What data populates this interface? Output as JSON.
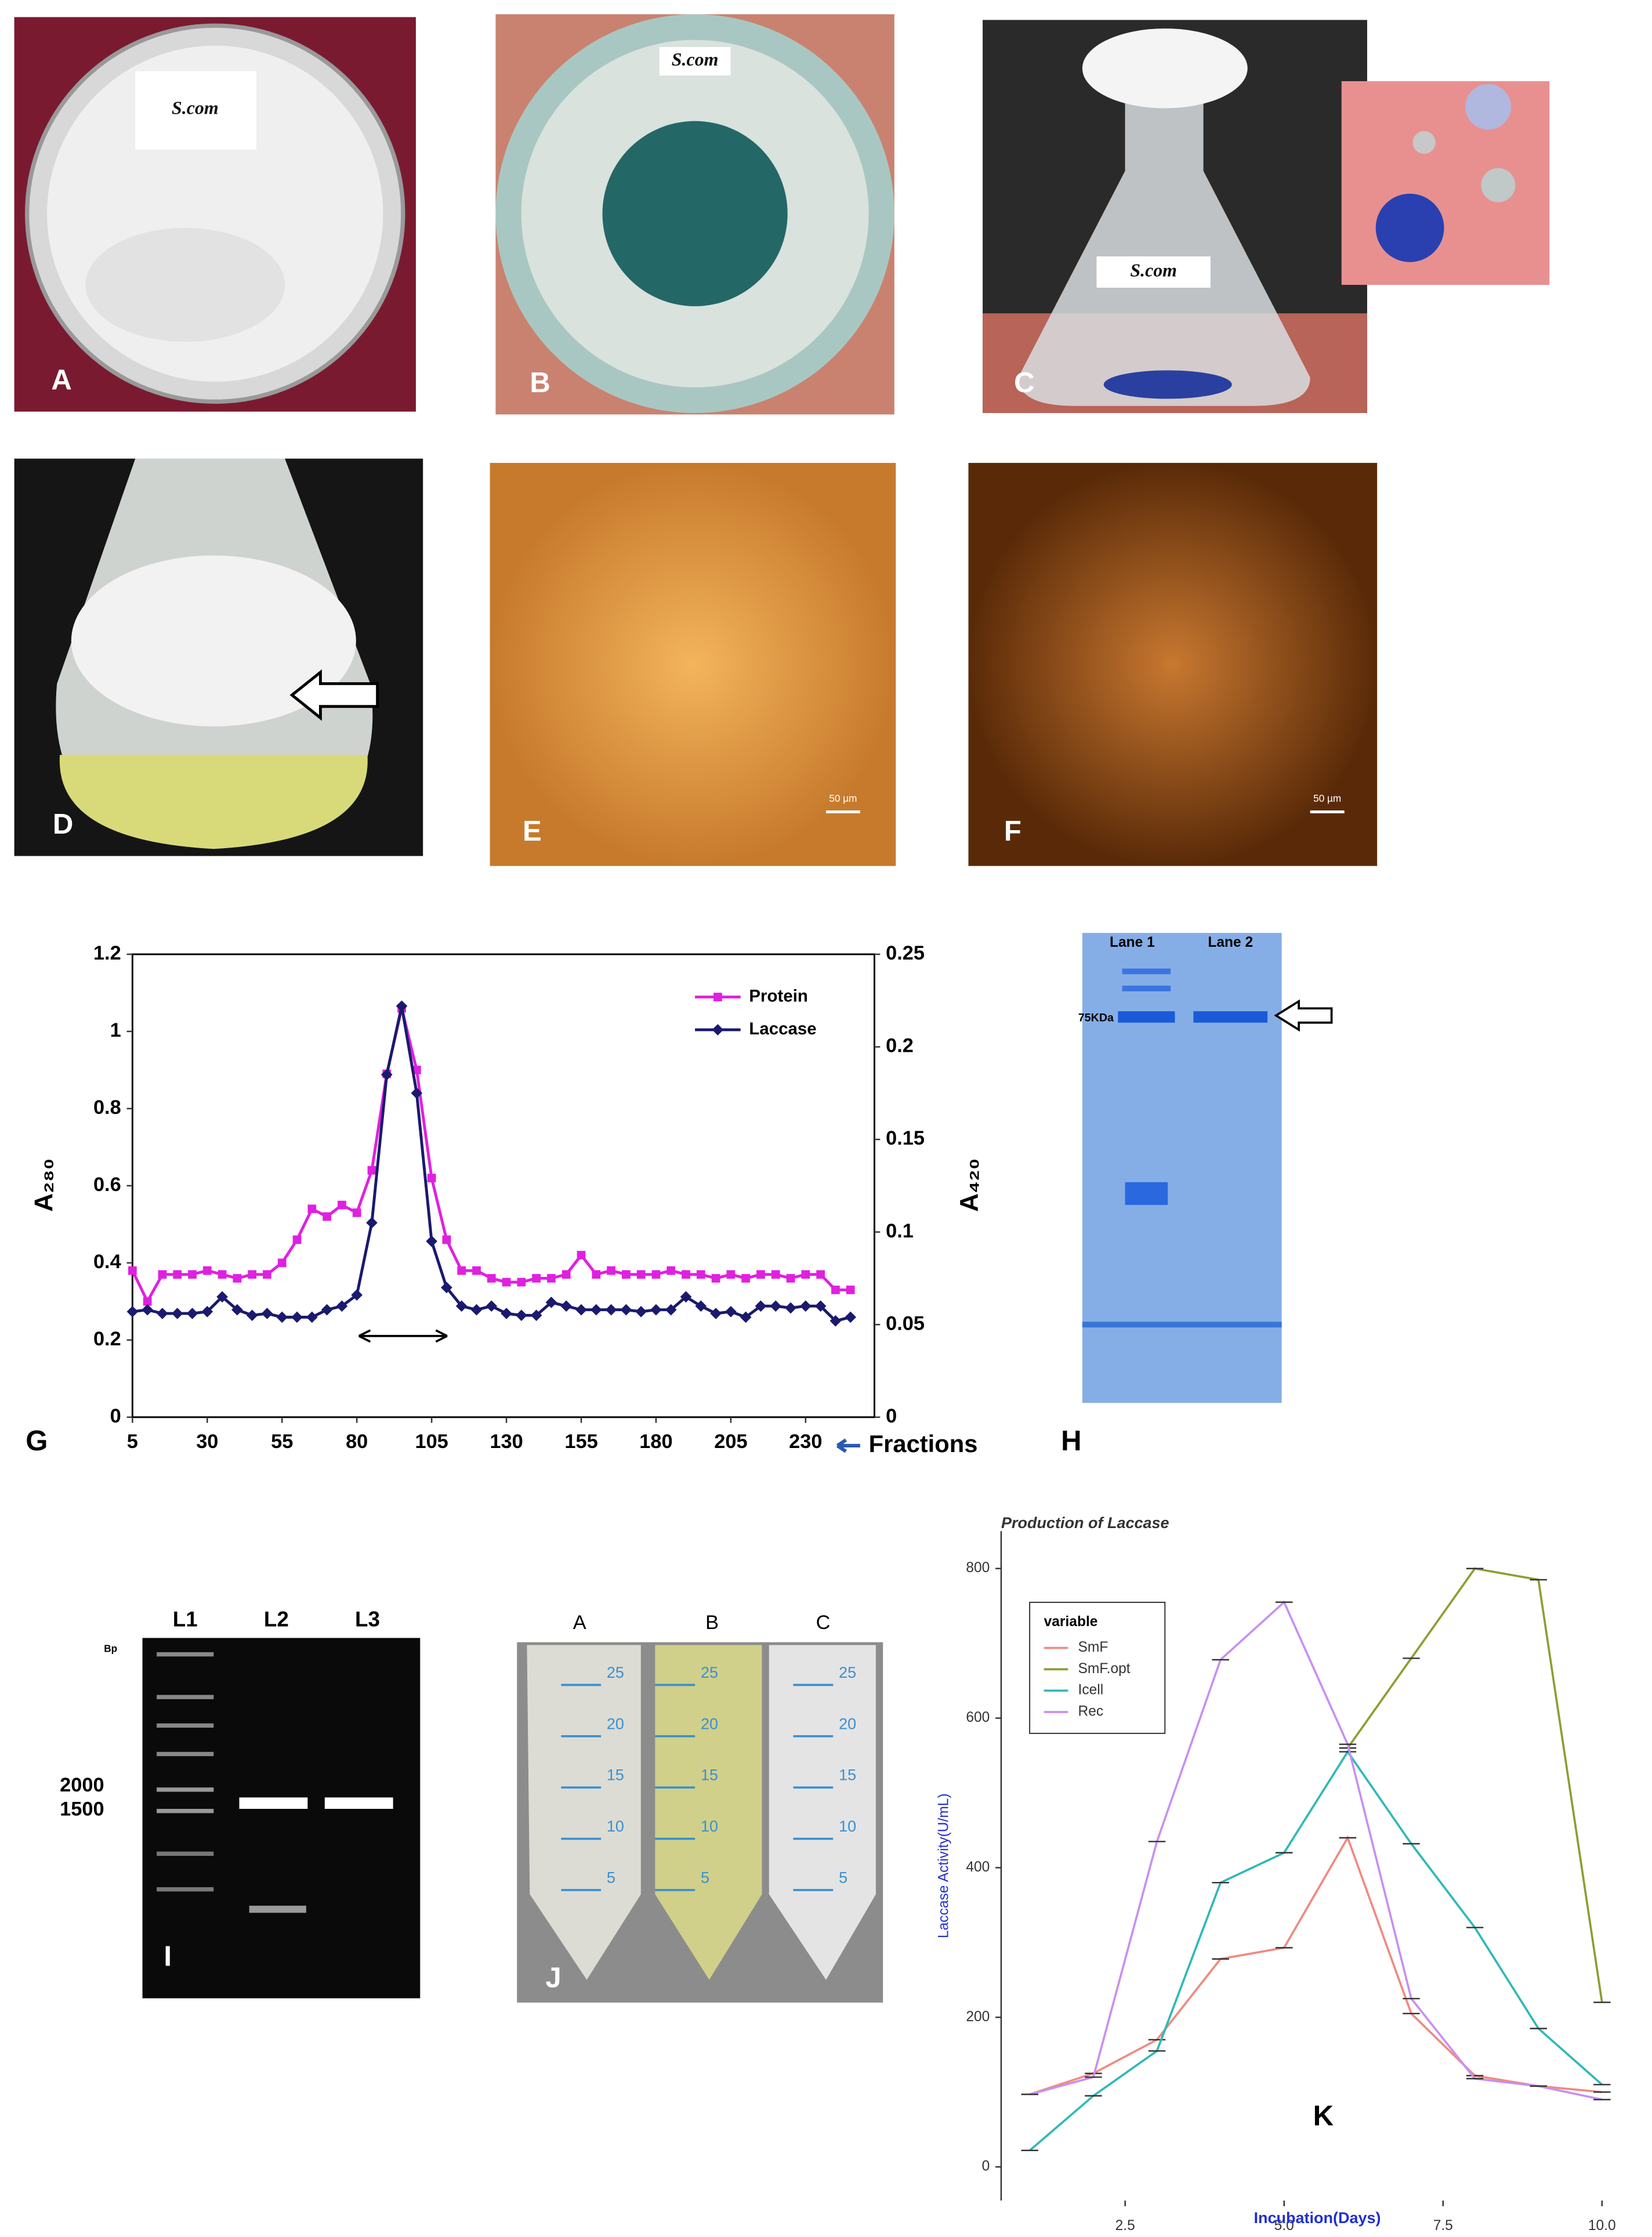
{
  "panels": {
    "A": {
      "label": "A",
      "stamp": "S.com"
    },
    "B": {
      "label": "B",
      "stamp": "S.com"
    },
    "C": {
      "label": "C",
      "stamp": "S.com"
    },
    "D": {
      "label": "D"
    },
    "E": {
      "label": "E",
      "scale_bar": "50 µm"
    },
    "F": {
      "label": "F",
      "scale_bar": "50 µm"
    },
    "G": {
      "label": "G"
    },
    "H": {
      "label": "H",
      "lanes": [
        "Lane 1",
        "Lane 2"
      ],
      "marker": "75KDa"
    },
    "I": {
      "label": "I",
      "lanes": [
        "L1",
        "L2",
        "L3"
      ],
      "unit": "Bp",
      "sizes": [
        "2000",
        "1500"
      ]
    },
    "J": {
      "label": "J",
      "tubes": [
        "A",
        "B",
        "C"
      ],
      "graduations": [
        "25",
        "20",
        "15",
        "10",
        "5"
      ]
    },
    "K": {
      "label": "K"
    }
  },
  "chart_data": [
    {
      "type": "line",
      "x_label": "Fractions",
      "y_label": "A₂₈₀",
      "y2_label": "A₄₂₀",
      "x": [
        5,
        10,
        15,
        20,
        25,
        30,
        35,
        40,
        45,
        50,
        55,
        60,
        65,
        70,
        75,
        80,
        85,
        90,
        95,
        100,
        105,
        110,
        115,
        120,
        125,
        130,
        135,
        140,
        145,
        150,
        155,
        160,
        165,
        170,
        175,
        180,
        185,
        190,
        195,
        200,
        205,
        210,
        215,
        220,
        225,
        230,
        235,
        240,
        245
      ],
      "xlim": [
        5,
        253
      ],
      "xticks": [
        5,
        30,
        55,
        80,
        105,
        130,
        155,
        180,
        205,
        230
      ],
      "ylim": [
        0,
        1.2
      ],
      "yticks": [
        0,
        0.2,
        0.4,
        0.6,
        0.8,
        1,
        1.2
      ],
      "y2lim": [
        0,
        0.25
      ],
      "y2ticks": [
        0,
        0.05,
        0.1,
        0.15,
        0.2,
        0.25
      ],
      "legend": "upper-right",
      "series": [
        {
          "name": "Protein",
          "color": "#e020e0",
          "marker": "square",
          "values": [
            0.38,
            0.3,
            0.37,
            0.37,
            0.37,
            0.38,
            0.37,
            0.36,
            0.37,
            0.37,
            0.4,
            0.46,
            0.54,
            0.52,
            0.55,
            0.53,
            0.64,
            0.89,
            1.06,
            0.9,
            0.62,
            0.46,
            0.38,
            0.38,
            0.36,
            0.35,
            0.35,
            0.36,
            0.36,
            0.37,
            0.42,
            0.37,
            0.38,
            0.37,
            0.37,
            0.37,
            0.38,
            0.37,
            0.37,
            0.36,
            0.37,
            0.36,
            0.37,
            0.37,
            0.36,
            0.37,
            0.37,
            0.33,
            0.33
          ]
        },
        {
          "name": "Laccase",
          "color": "#1a1a6e",
          "marker": "diamond",
          "axis": "y2",
          "values": [
            0.057,
            0.058,
            0.056,
            0.056,
            0.056,
            0.057,
            0.065,
            0.058,
            0.055,
            0.056,
            0.054,
            0.054,
            0.054,
            0.058,
            0.06,
            0.066,
            0.105,
            0.185,
            0.222,
            0.175,
            0.095,
            0.07,
            0.06,
            0.058,
            0.06,
            0.056,
            0.055,
            0.055,
            0.062,
            0.06,
            0.058,
            0.058,
            0.058,
            0.058,
            0.057,
            0.058,
            0.058,
            0.065,
            0.06,
            0.056,
            0.057,
            0.054,
            0.06,
            0.06,
            0.059,
            0.06,
            0.06,
            0.052,
            0.054
          ]
        }
      ]
    },
    {
      "type": "line",
      "title": "Production of Laccase",
      "x_label": "Incubation(Days)",
      "y_label": "Laccase Activity(U/mL)",
      "legend_title": "variable",
      "legend": "upper-left",
      "x": [
        1,
        2,
        3,
        4,
        5,
        6,
        7,
        8,
        9,
        10
      ],
      "xlim": [
        0.55,
        10.45
      ],
      "xticks": [
        {
          "value": 2.5,
          "label": "2.5"
        },
        {
          "value": 5,
          "label": "5.0"
        },
        {
          "value": 7.5,
          "label": "7.5"
        },
        {
          "value": 10,
          "label": "10.0"
        }
      ],
      "ylim": [
        -45,
        850
      ],
      "yticks": [
        0,
        200,
        400,
        600,
        800
      ],
      "series": [
        {
          "name": "SmF",
          "color": "#f08a80",
          "values": [
            97,
            125,
            170,
            278,
            293,
            440,
            205,
            122,
            108,
            100
          ]
        },
        {
          "name": "SmF.opt",
          "color": "#8aa030",
          "values": [
            null,
            null,
            null,
            null,
            null,
            560,
            680,
            800,
            785,
            220
          ]
        },
        {
          "name": "Icell",
          "color": "#30b8b8",
          "values": [
            22,
            95,
            155,
            380,
            420,
            555,
            432,
            320,
            185,
            110
          ]
        },
        {
          "name": "Rec",
          "color": "#c890f0",
          "values": [
            97,
            120,
            435,
            678,
            755,
            565,
            225,
            118,
            108,
            90
          ]
        }
      ]
    }
  ]
}
